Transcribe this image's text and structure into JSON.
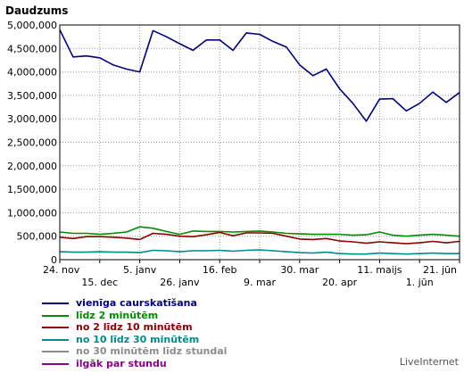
{
  "chart_data": {
    "type": "line",
    "ylabel": "Daudzums",
    "ylim": [
      0,
      5000000
    ],
    "yticks": [
      0,
      500000,
      1000000,
      1500000,
      2000000,
      2500000,
      3000000,
      3500000,
      4000000,
      4500000,
      5000000
    ],
    "ytick_labels": [
      "0",
      "500,000",
      "1,000,000",
      "1,500,000",
      "2,000,000",
      "2,500,000",
      "3,000,000",
      "3,500,000",
      "4,000,000",
      "4,500,000",
      "5,000,000"
    ],
    "x_labels_row1": [
      "24. nov",
      "5. janv",
      "16. feb",
      "30. mar",
      "11. maijs",
      "21. jūn"
    ],
    "x_labels_row2": [
      "15. dec",
      "26. janv",
      "9. mar",
      "20. apr",
      "1. jūn"
    ],
    "x_label_index_row1": [
      0,
      6,
      12,
      18,
      24,
      30
    ],
    "x_label_index_row2": [
      3,
      9,
      15,
      21,
      27
    ],
    "grid": true,
    "series": [
      {
        "name": "vienīga caurskatīšana",
        "color": "#00007f",
        "values": [
          4900000,
          4320000,
          4340000,
          4300000,
          4150000,
          4060000,
          4000000,
          4880000,
          4750000,
          4600000,
          4460000,
          4680000,
          4680000,
          4460000,
          4830000,
          4800000,
          4650000,
          4530000,
          4150000,
          3920000,
          4060000,
          3640000,
          3330000,
          2950000,
          3420000,
          3430000,
          3170000,
          3330000,
          3570000,
          3350000,
          3560000
        ]
      },
      {
        "name": "līdz 2 minūtēm",
        "color": "#008c00",
        "values": [
          590000,
          560000,
          560000,
          540000,
          560000,
          590000,
          700000,
          670000,
          600000,
          540000,
          610000,
          600000,
          600000,
          590000,
          600000,
          610000,
          590000,
          560000,
          550000,
          540000,
          540000,
          540000,
          520000,
          530000,
          590000,
          520000,
          500000,
          520000,
          540000,
          520000,
          500000
        ]
      },
      {
        "name": "no 2 līdz 10 minūtēm",
        "color": "#8c0000",
        "values": [
          480000,
          450000,
          490000,
          490000,
          480000,
          460000,
          430000,
          560000,
          540000,
          500000,
          490000,
          530000,
          580000,
          510000,
          570000,
          570000,
          560000,
          500000,
          440000,
          430000,
          450000,
          400000,
          380000,
          350000,
          380000,
          360000,
          340000,
          360000,
          390000,
          360000,
          390000
        ]
      },
      {
        "name": "no 10 līdz 30 minūtēm",
        "color": "#008c8c",
        "values": [
          170000,
          160000,
          160000,
          170000,
          160000,
          160000,
          150000,
          200000,
          190000,
          170000,
          190000,
          190000,
          200000,
          180000,
          200000,
          210000,
          190000,
          170000,
          150000,
          140000,
          160000,
          130000,
          120000,
          120000,
          140000,
          130000,
          120000,
          130000,
          140000,
          130000,
          130000
        ]
      },
      {
        "name": "no 30 minūtēm līdz stundai",
        "color": "#8c8c8c",
        "values": []
      },
      {
        "name": "ilgāk par stundu",
        "color": "#8c008c",
        "values": []
      }
    ]
  },
  "brand": "LiveInternet"
}
